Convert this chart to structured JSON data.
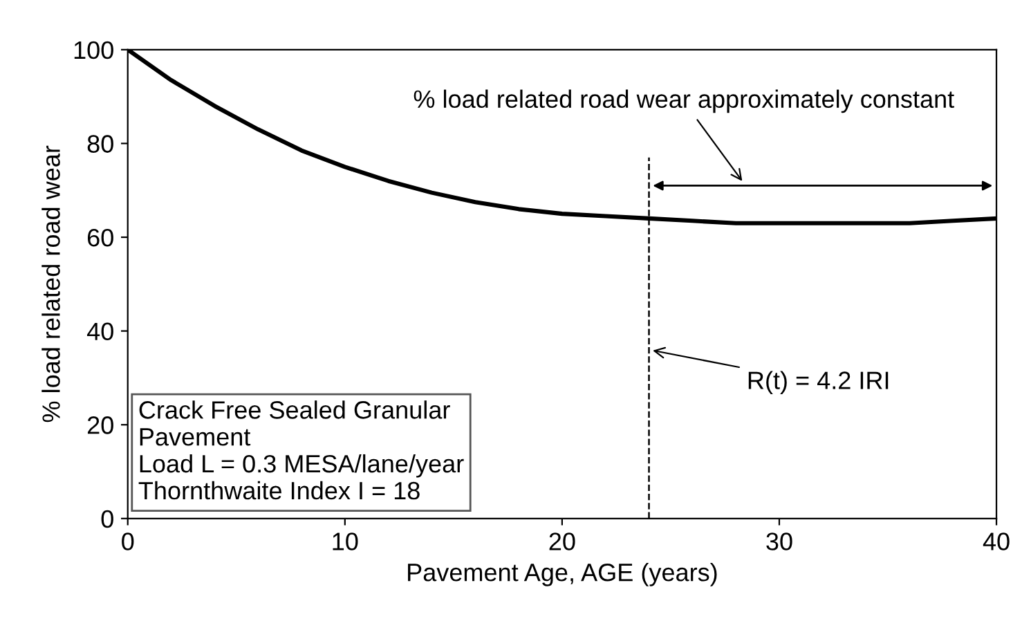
{
  "chart_data": {
    "type": "line",
    "xlabel": "Pavement Age, AGE (years)",
    "ylabel": "% load related road wear",
    "x": [
      0,
      2,
      4,
      6,
      8,
      10,
      12,
      14,
      16,
      18,
      20,
      22,
      24,
      26,
      28,
      30,
      32,
      34,
      36,
      38,
      40
    ],
    "series": [
      {
        "color": "#000000",
        "values": [
          100,
          93.5,
          88,
          83,
          78.5,
          75,
          72,
          69.5,
          67.5,
          66,
          65,
          64.5,
          64,
          63.5,
          63,
          63,
          63,
          63,
          63,
          63.5,
          64
        ]
      }
    ],
    "xlim": [
      0,
      40
    ],
    "ylim": [
      0,
      100
    ],
    "xticks": [
      0,
      10,
      20,
      30,
      40
    ],
    "yticks": [
      0,
      20,
      40,
      60,
      80,
      100
    ],
    "ref_lines": [
      {
        "axis": "x",
        "value": 24,
        "line_style": "dashed",
        "color": "#000000"
      }
    ],
    "annotations": [
      {
        "text": "R(t) = 4.2 IRI",
        "x": 24,
        "y": 36
      },
      "% load related road wear approximately constant",
      "Crack Free Sealed Granular\nPavement\nLoad L = 0.3 MESA/lane/year\nThornthwaite Index I = 18"
    ],
    "grid": false,
    "legend": false,
    "marker": "none",
    "line_style": "solid"
  }
}
